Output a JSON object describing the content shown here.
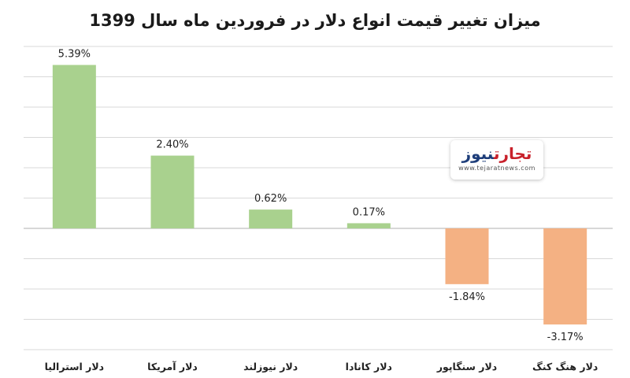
{
  "chart_data": {
    "type": "bar",
    "title": "میزان تغییر قیمت انواع دلار در فروردین ماه سال 1399",
    "categories": [
      "دلار استرالیا",
      "دلار آمریکا",
      "دلار نیوزلند",
      "دلار کانادا",
      "دلار سنگاپور",
      "دلار هنگ کنگ"
    ],
    "values": [
      5.39,
      2.4,
      0.62,
      0.17,
      -1.84,
      -3.17
    ],
    "value_labels": [
      "5.39%",
      "2.40%",
      "0.62%",
      "0.17%",
      "-1.84%",
      "-3.17%"
    ],
    "ylim": [
      -4,
      6
    ],
    "grid": true,
    "legend": "none",
    "colors": {
      "positive": "#a9d18e",
      "negative": "#f4b183"
    }
  },
  "logo": {
    "part1": "تجارت",
    "part2": "نیوز",
    "url": "www.tejaratnews.com"
  }
}
